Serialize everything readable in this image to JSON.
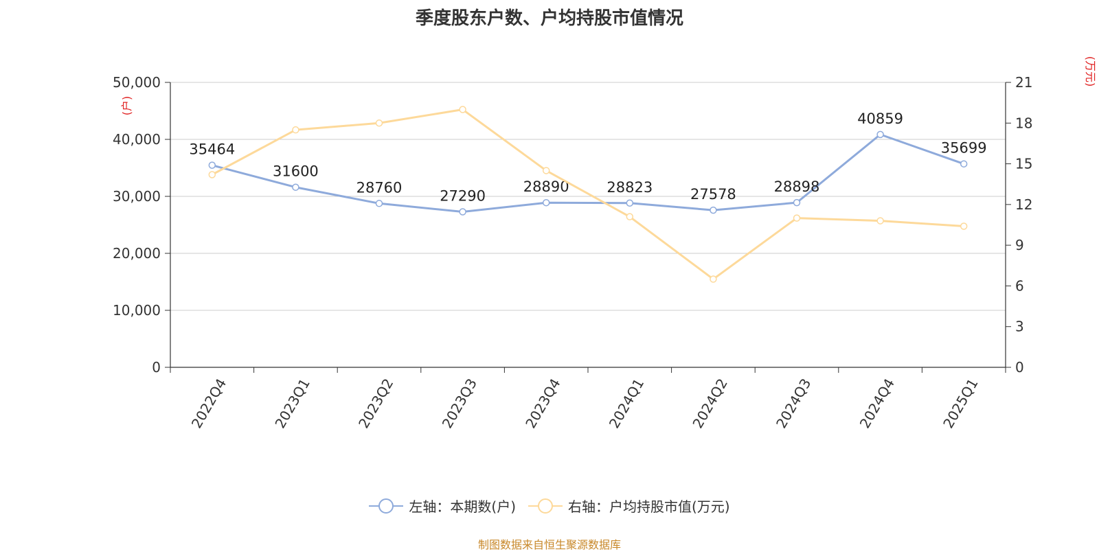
{
  "chart_data": {
    "type": "line",
    "title": "季度股东户数、户均持股市值情况",
    "categories": [
      "2022Q4",
      "2023Q1",
      "2023Q2",
      "2023Q3",
      "2023Q4",
      "2024Q1",
      "2024Q2",
      "2024Q3",
      "2024Q4",
      "2025Q1"
    ],
    "series": [
      {
        "name": "左轴：本期数(户)",
        "axis": "left",
        "color": "#8eaadb",
        "values": [
          35464,
          31600,
          28760,
          27290,
          28890,
          28823,
          27578,
          28898,
          40859,
          35699
        ],
        "show_labels": true
      },
      {
        "name": "右轴：户均持股市值(万元)",
        "axis": "right",
        "color": "#fdd99a",
        "values": [
          14.2,
          17.5,
          18.0,
          19.0,
          14.5,
          11.1,
          6.5,
          11.0,
          10.8,
          10.4
        ],
        "show_labels": false
      }
    ],
    "y_left": {
      "label": "(户)",
      "ylim": [
        0,
        50000
      ],
      "ticks": [
        "0",
        "10,000",
        "20,000",
        "30,000",
        "40,000",
        "50,000"
      ]
    },
    "y_right": {
      "label": "(万元)",
      "ylim": [
        0,
        21
      ],
      "ticks": [
        "0",
        "3",
        "6",
        "9",
        "12",
        "15",
        "18",
        "21"
      ]
    },
    "grid": true,
    "legend": "bottom-center",
    "source": "制图数据来自恒生聚源数据库"
  }
}
